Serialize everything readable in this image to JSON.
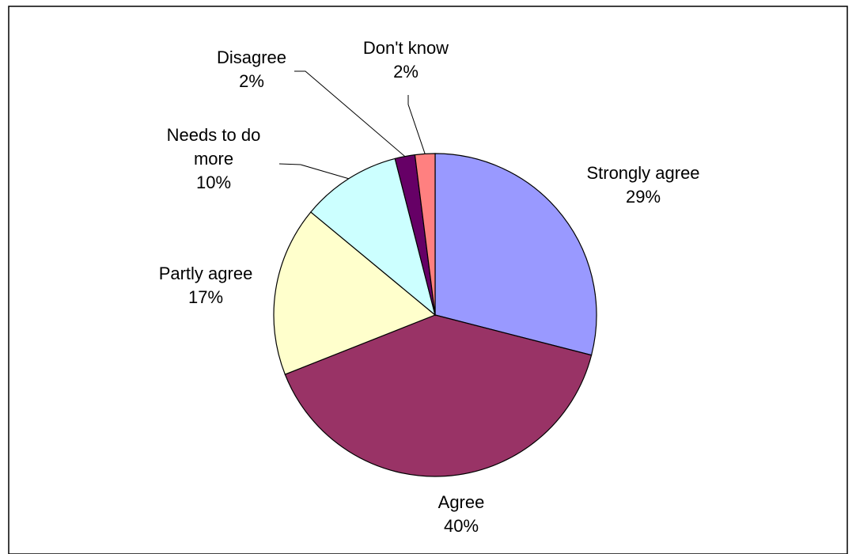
{
  "chart_data": {
    "type": "pie",
    "title": "",
    "slices": [
      {
        "label": "Strongly agree",
        "value": 29,
        "value_label": "29%",
        "color": "#9999FF"
      },
      {
        "label": "Agree",
        "value": 40,
        "value_label": "40%",
        "color": "#993366"
      },
      {
        "label": "Partly agree",
        "value": 17,
        "value_label": "17%",
        "color": "#FFFFCC"
      },
      {
        "label": "Needs to do more",
        "label_lines": [
          "Needs to do",
          "more"
        ],
        "value": 10,
        "value_label": "10%",
        "color": "#CCFFFF"
      },
      {
        "label": "Disagree",
        "value": 2,
        "value_label": "2%",
        "color": "#660066"
      },
      {
        "label": "Don't know",
        "value": 2,
        "value_label": "2%",
        "color": "#FF8080"
      }
    ],
    "start_angle_deg": 0,
    "direction": "clockwise",
    "legend": "none",
    "labels": "outside with leader lines for small slices"
  }
}
